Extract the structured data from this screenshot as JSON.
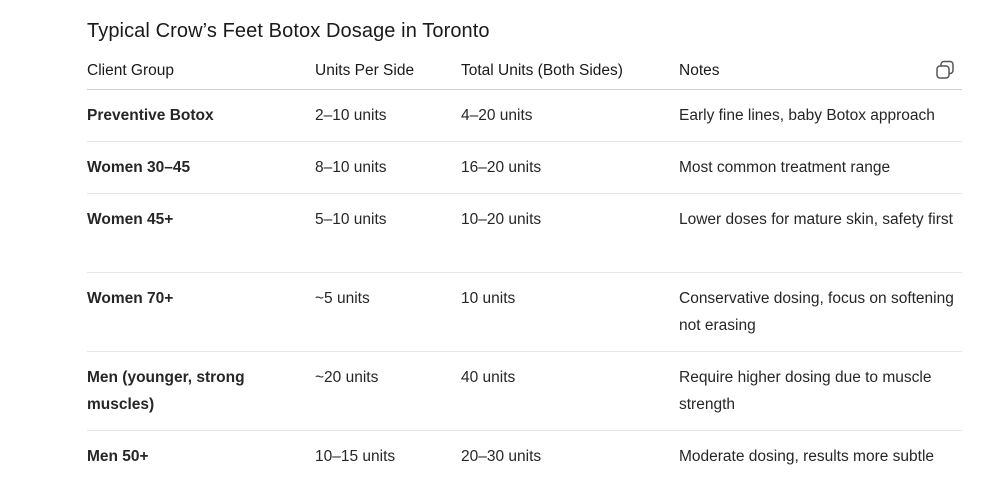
{
  "title": "Typical Crow’s Feet Botox Dosage in Toronto",
  "copy_icon": "copy-icon",
  "table": {
    "headers": [
      "Client Group",
      "Units Per Side",
      "Total Units (Both Sides)",
      "Notes"
    ],
    "rows": [
      [
        "Preventive Botox",
        "2–10 units",
        "4–20 units",
        "Early fine lines, baby Botox approach"
      ],
      [
        "Women 30–45",
        "8–10 units",
        "16–20 units",
        "Most common treatment range"
      ],
      [
        "Women 45+",
        "5–10 units",
        "10–20 units",
        "Lower doses for mature skin, safety first"
      ],
      [
        "Women 70+",
        "~5 units",
        "10 units",
        "Conservative dosing, focus on softening not erasing"
      ],
      [
        "Men (younger, strong muscles)",
        "~20 units",
        "40 units",
        "Require higher dosing due to muscle strength"
      ],
      [
        "Men 50+",
        "10–15 units",
        "20–30 units",
        "Moderate dosing, results more subtle"
      ]
    ]
  }
}
